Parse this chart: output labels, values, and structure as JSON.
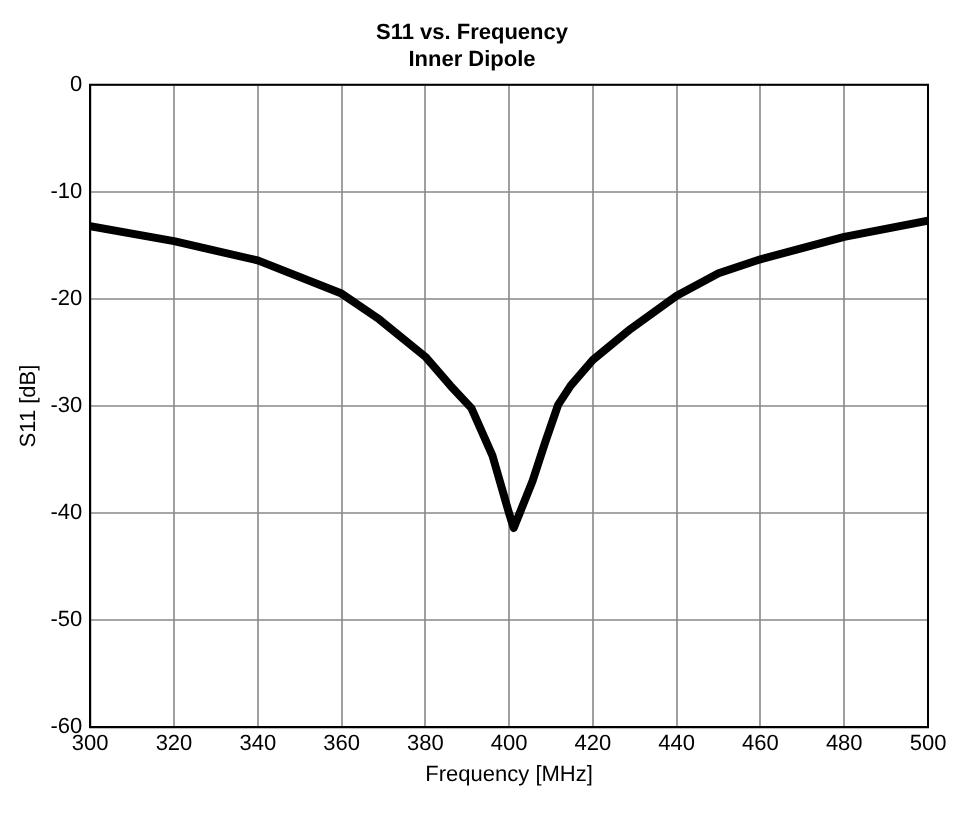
{
  "chart_data": {
    "type": "line",
    "title": "S11 vs. Frequency\nInner Dipole",
    "xlabel": "Frequency [MHz]",
    "ylabel": "S11 [dB]",
    "x": [
      300,
      320,
      340,
      360,
      369,
      380,
      386,
      391,
      396,
      399.9,
      401.1,
      405.6,
      408.6,
      411.7,
      414.7,
      420,
      429,
      440,
      450,
      460,
      480,
      500
    ],
    "series": [
      {
        "color": "#000000",
        "values": [
          -13.2,
          -14.6,
          -16.4,
          -19.5,
          -21.9,
          -25.4,
          -28.1,
          -30.2,
          -34.6,
          -39.9,
          -41.4,
          -37,
          -33.4,
          -29.9,
          -28.1,
          -25.7,
          -22.8,
          -19.7,
          -17.6,
          -16.3,
          -14.2,
          -12.7
        ]
      }
    ],
    "xlim": [
      300,
      500
    ],
    "ylim": [
      -60,
      0
    ],
    "xticks": [
      300,
      320,
      340,
      360,
      380,
      400,
      420,
      440,
      460,
      480,
      500
    ],
    "yticks": [
      -60,
      -50,
      -40,
      -30,
      -20,
      -10,
      0
    ],
    "grid": true,
    "legend": false,
    "marker": "none",
    "line_style": "solid"
  }
}
